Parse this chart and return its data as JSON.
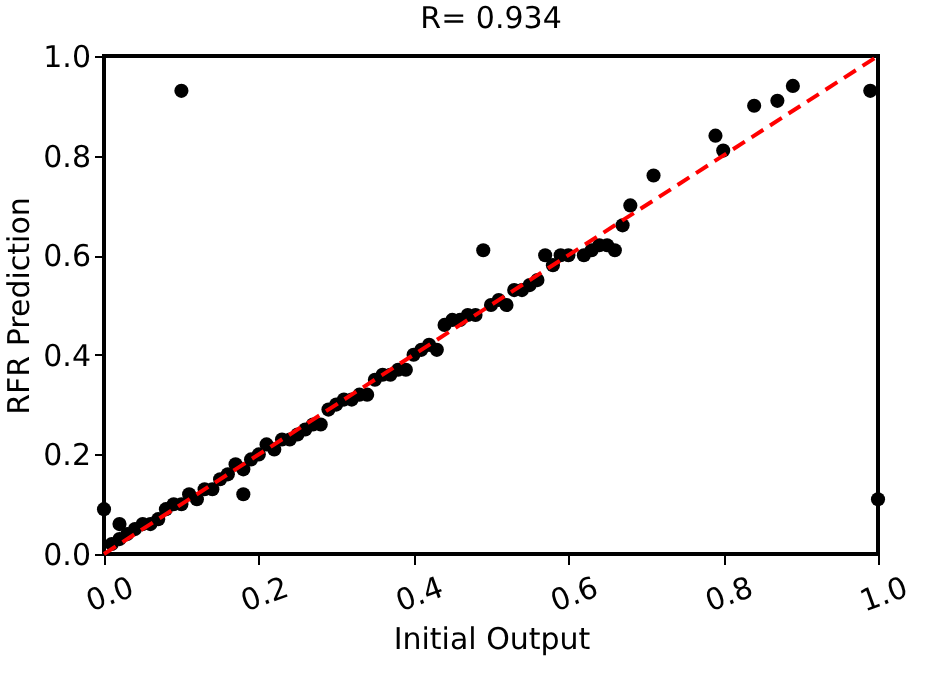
{
  "chart_data": {
    "type": "scatter",
    "title": "R= 0.934",
    "xlabel": "Initial Output",
    "ylabel": "RFR Prediction",
    "xlim": [
      0,
      1
    ],
    "ylim": [
      0,
      1
    ],
    "xticks": [
      {
        "value": 0,
        "label": "0.0"
      },
      {
        "value": 0.2,
        "label": "0.2"
      },
      {
        "value": 0.4,
        "label": "0.4"
      },
      {
        "value": 0.6,
        "label": "0.6"
      },
      {
        "value": 0.8,
        "label": "0.8"
      },
      {
        "value": 1,
        "label": "1.0"
      }
    ],
    "yticks": [
      {
        "value": 0,
        "label": "0.0"
      },
      {
        "value": 0.2,
        "label": "0.2"
      },
      {
        "value": 0.4,
        "label": "0.4"
      },
      {
        "value": 0.6,
        "label": "0.6"
      },
      {
        "value": 0.8,
        "label": "0.8"
      },
      {
        "value": 1,
        "label": "1.0"
      }
    ],
    "grid": false,
    "marker": "circle",
    "series": [
      {
        "type": "scatter",
        "color": "#000000",
        "x": [
          0.01,
          0.02,
          0.03,
          0.04,
          0.05,
          0.06,
          0.07,
          0.08,
          0.09,
          0.1,
          0.11,
          0.12,
          0.13,
          0.14,
          0.15,
          0.16,
          0.17,
          0.18,
          0.19,
          0.2,
          0.21,
          0.22,
          0.23,
          0.24,
          0.25,
          0.26,
          0.27,
          0.28,
          0.29,
          0.3,
          0.31,
          0.32,
          0.33,
          0.34,
          0.35,
          0.36,
          0.37,
          0.38,
          0.39,
          0.4,
          0.41,
          0.42,
          0.43,
          0.44,
          0.45,
          0.46,
          0.47,
          0.48,
          0.5,
          0.51,
          0.52,
          0.53,
          0.54,
          0.55,
          0.56,
          0.57,
          0.58,
          0.59,
          0.6,
          0.62,
          0.63,
          0.64,
          0.65,
          0.66,
          0.67,
          0.68,
          0.71,
          0.79,
          0.8,
          0.84,
          0.87,
          0.89,
          0.99,
          1.0,
          0.1,
          0.18,
          0.49,
          0.0,
          0.02
        ],
        "values": [
          0.02,
          0.03,
          0.04,
          0.05,
          0.06,
          0.06,
          0.07,
          0.09,
          0.1,
          0.1,
          0.12,
          0.11,
          0.13,
          0.13,
          0.15,
          0.16,
          0.18,
          0.17,
          0.19,
          0.2,
          0.22,
          0.21,
          0.23,
          0.23,
          0.24,
          0.25,
          0.26,
          0.26,
          0.29,
          0.3,
          0.31,
          0.31,
          0.32,
          0.32,
          0.35,
          0.36,
          0.36,
          0.37,
          0.37,
          0.4,
          0.41,
          0.42,
          0.41,
          0.46,
          0.47,
          0.47,
          0.48,
          0.48,
          0.5,
          0.51,
          0.5,
          0.53,
          0.53,
          0.54,
          0.55,
          0.6,
          0.58,
          0.6,
          0.6,
          0.6,
          0.61,
          0.62,
          0.62,
          0.61,
          0.66,
          0.7,
          0.76,
          0.84,
          0.81,
          0.9,
          0.91,
          0.94,
          0.93,
          0.11,
          0.93,
          0.12,
          0.61,
          0.09,
          0.06
        ]
      },
      {
        "type": "line",
        "color": "#ff0000",
        "line_style": "dashed",
        "marker": "none",
        "x": [
          0,
          1
        ],
        "values": [
          0,
          1
        ]
      }
    ]
  }
}
